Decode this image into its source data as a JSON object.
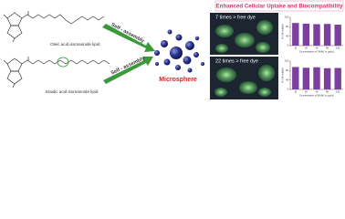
{
  "title": "Enhanced Cellular Uptake and Biocompatibility",
  "molecules": [
    {
      "label": "Oleic acid isomannide lipid"
    },
    {
      "label": "Elaidic acid isomannide lipid"
    }
  ],
  "arrows": [
    {
      "label": "Self - assembly"
    },
    {
      "label": "Self - assembly"
    }
  ],
  "product": {
    "label": "Microsphere"
  },
  "panels": [
    {
      "caption": "7 times > free dye",
      "chart": {
        "type": "bar",
        "y_label": "% Cell viability",
        "x_label": "Concentration of OAIML in μg/mL",
        "categories": [
          "10",
          "20",
          "40",
          "80",
          "100"
        ],
        "values": [
          96,
          93,
          91,
          92,
          89
        ],
        "color": "#7d3f9e",
        "ylim": [
          0,
          120
        ],
        "yticks": [
          0,
          40,
          80,
          120
        ]
      }
    },
    {
      "caption": "22 times > free dye",
      "chart": {
        "type": "bar",
        "y_label": "% Cell viability",
        "x_label": "Concentration of EAIML in μg/mL",
        "categories": [
          "10",
          "20",
          "40",
          "80",
          "100"
        ],
        "values": [
          95,
          92,
          94,
          90,
          91
        ],
        "color": "#7d3f9e",
        "ylim": [
          0,
          120
        ],
        "yticks": [
          0,
          40,
          80,
          120
        ]
      }
    }
  ]
}
